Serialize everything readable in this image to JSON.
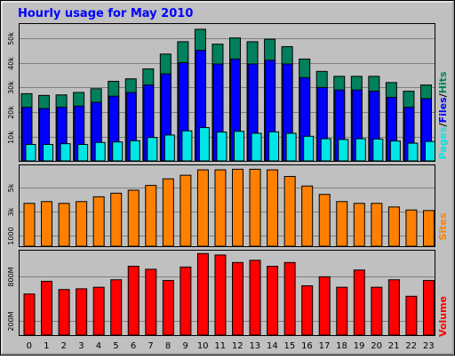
{
  "colors": {
    "background": "#c0c0c0",
    "plot_bg": "#c0c0c0",
    "title": "#0000ff",
    "hits": "#00805c",
    "files": "#0000ff",
    "pages": "#00e6e6",
    "sites": "#ff8000",
    "volume": "#ff0000",
    "legend_separator": "#000000"
  },
  "chart_data": [
    {
      "type": "bar",
      "title": "Hourly usage for May 2010",
      "categories": [
        "0",
        "1",
        "2",
        "3",
        "4",
        "5",
        "6",
        "7",
        "8",
        "9",
        "10",
        "11",
        "12",
        "13",
        "14",
        "15",
        "16",
        "17",
        "18",
        "19",
        "20",
        "21",
        "22",
        "23"
      ],
      "y_tick_labels": [
        "10k",
        "20k",
        "30k",
        "40k",
        "50k"
      ],
      "y_ticks": [
        10000,
        20000,
        30000,
        40000,
        50000
      ],
      "ylim": [
        0,
        56000
      ],
      "legend": {
        "placement": "right-vertical",
        "separator": "/"
      },
      "series": [
        {
          "name": "Hits",
          "values": [
            27500,
            26800,
            27000,
            28000,
            29500,
            32500,
            33500,
            37500,
            43500,
            48500,
            53500,
            47500,
            50000,
            48500,
            49500,
            46500,
            41500,
            36500,
            34500,
            34500,
            34500,
            32000,
            28500,
            31000
          ]
        },
        {
          "name": "Files",
          "values": [
            22000,
            21500,
            22000,
            22500,
            24000,
            26500,
            28000,
            31000,
            35500,
            40000,
            45000,
            39500,
            41500,
            39500,
            41000,
            39500,
            34000,
            30000,
            29000,
            29000,
            28500,
            26000,
            22000,
            25500
          ]
        },
        {
          "name": "Pages",
          "values": [
            7000,
            7000,
            7300,
            7000,
            7800,
            8000,
            8500,
            9800,
            10800,
            12500,
            13800,
            12000,
            12300,
            11500,
            12100,
            11500,
            10300,
            9300,
            9000,
            9300,
            9200,
            8400,
            7500,
            8200
          ]
        }
      ]
    },
    {
      "type": "bar",
      "categories": [
        "0",
        "1",
        "2",
        "3",
        "4",
        "5",
        "6",
        "7",
        "8",
        "9",
        "10",
        "11",
        "12",
        "13",
        "14",
        "15",
        "16",
        "17",
        "18",
        "19",
        "20",
        "21",
        "22",
        "23"
      ],
      "y_tick_labels": [
        "1000",
        "3k",
        "5k"
      ],
      "y_ticks": [
        1000,
        3000,
        5000
      ],
      "ylim": [
        0,
        6900
      ],
      "series": [
        {
          "name": "Sites",
          "values": [
            3650,
            3800,
            3650,
            3800,
            4200,
            4500,
            4750,
            5150,
            5700,
            6000,
            6450,
            6450,
            6500,
            6500,
            6450,
            5900,
            5100,
            4400,
            3800,
            3650,
            3650,
            3350,
            3100,
            3050
          ]
        }
      ]
    },
    {
      "type": "bar",
      "categories": [
        "0",
        "1",
        "2",
        "3",
        "4",
        "5",
        "6",
        "7",
        "8",
        "9",
        "10",
        "11",
        "12",
        "13",
        "14",
        "15",
        "16",
        "17",
        "18",
        "19",
        "20",
        "21",
        "22",
        "23"
      ],
      "x_tick_labels": [
        "0",
        "1",
        "2",
        "3",
        "4",
        "5",
        "6",
        "7",
        "8",
        "9",
        "10",
        "11",
        "12",
        "13",
        "14",
        "15",
        "16",
        "17",
        "18",
        "19",
        "20",
        "21",
        "22",
        "23"
      ],
      "y_tick_labels": [
        "200M",
        "800M"
      ],
      "y_ticks": [
        200,
        800
      ],
      "ylim": [
        0,
        1150
      ],
      "series": [
        {
          "name": "Volume",
          "values": [
            560,
            730,
            620,
            630,
            650,
            750,
            930,
            890,
            740,
            920,
            1100,
            1080,
            980,
            1010,
            930,
            980,
            670,
            790,
            650,
            880,
            650,
            750,
            530,
            740
          ]
        }
      ]
    }
  ]
}
